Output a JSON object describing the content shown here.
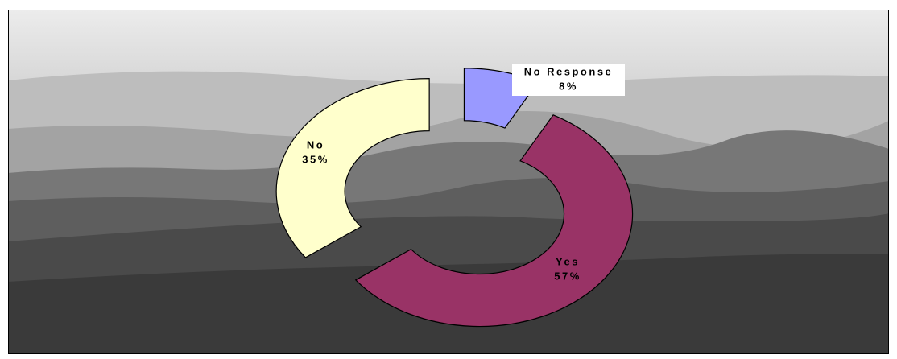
{
  "chart_data": {
    "type": "doughnut",
    "categories": [
      "No Response",
      "Yes",
      "No"
    ],
    "values": [
      8,
      57,
      35
    ],
    "value_labels": [
      "8%",
      "57%",
      "35%"
    ],
    "colors": [
      "#9999ff",
      "#993366",
      "#ffffcc"
    ],
    "exploded": true
  }
}
